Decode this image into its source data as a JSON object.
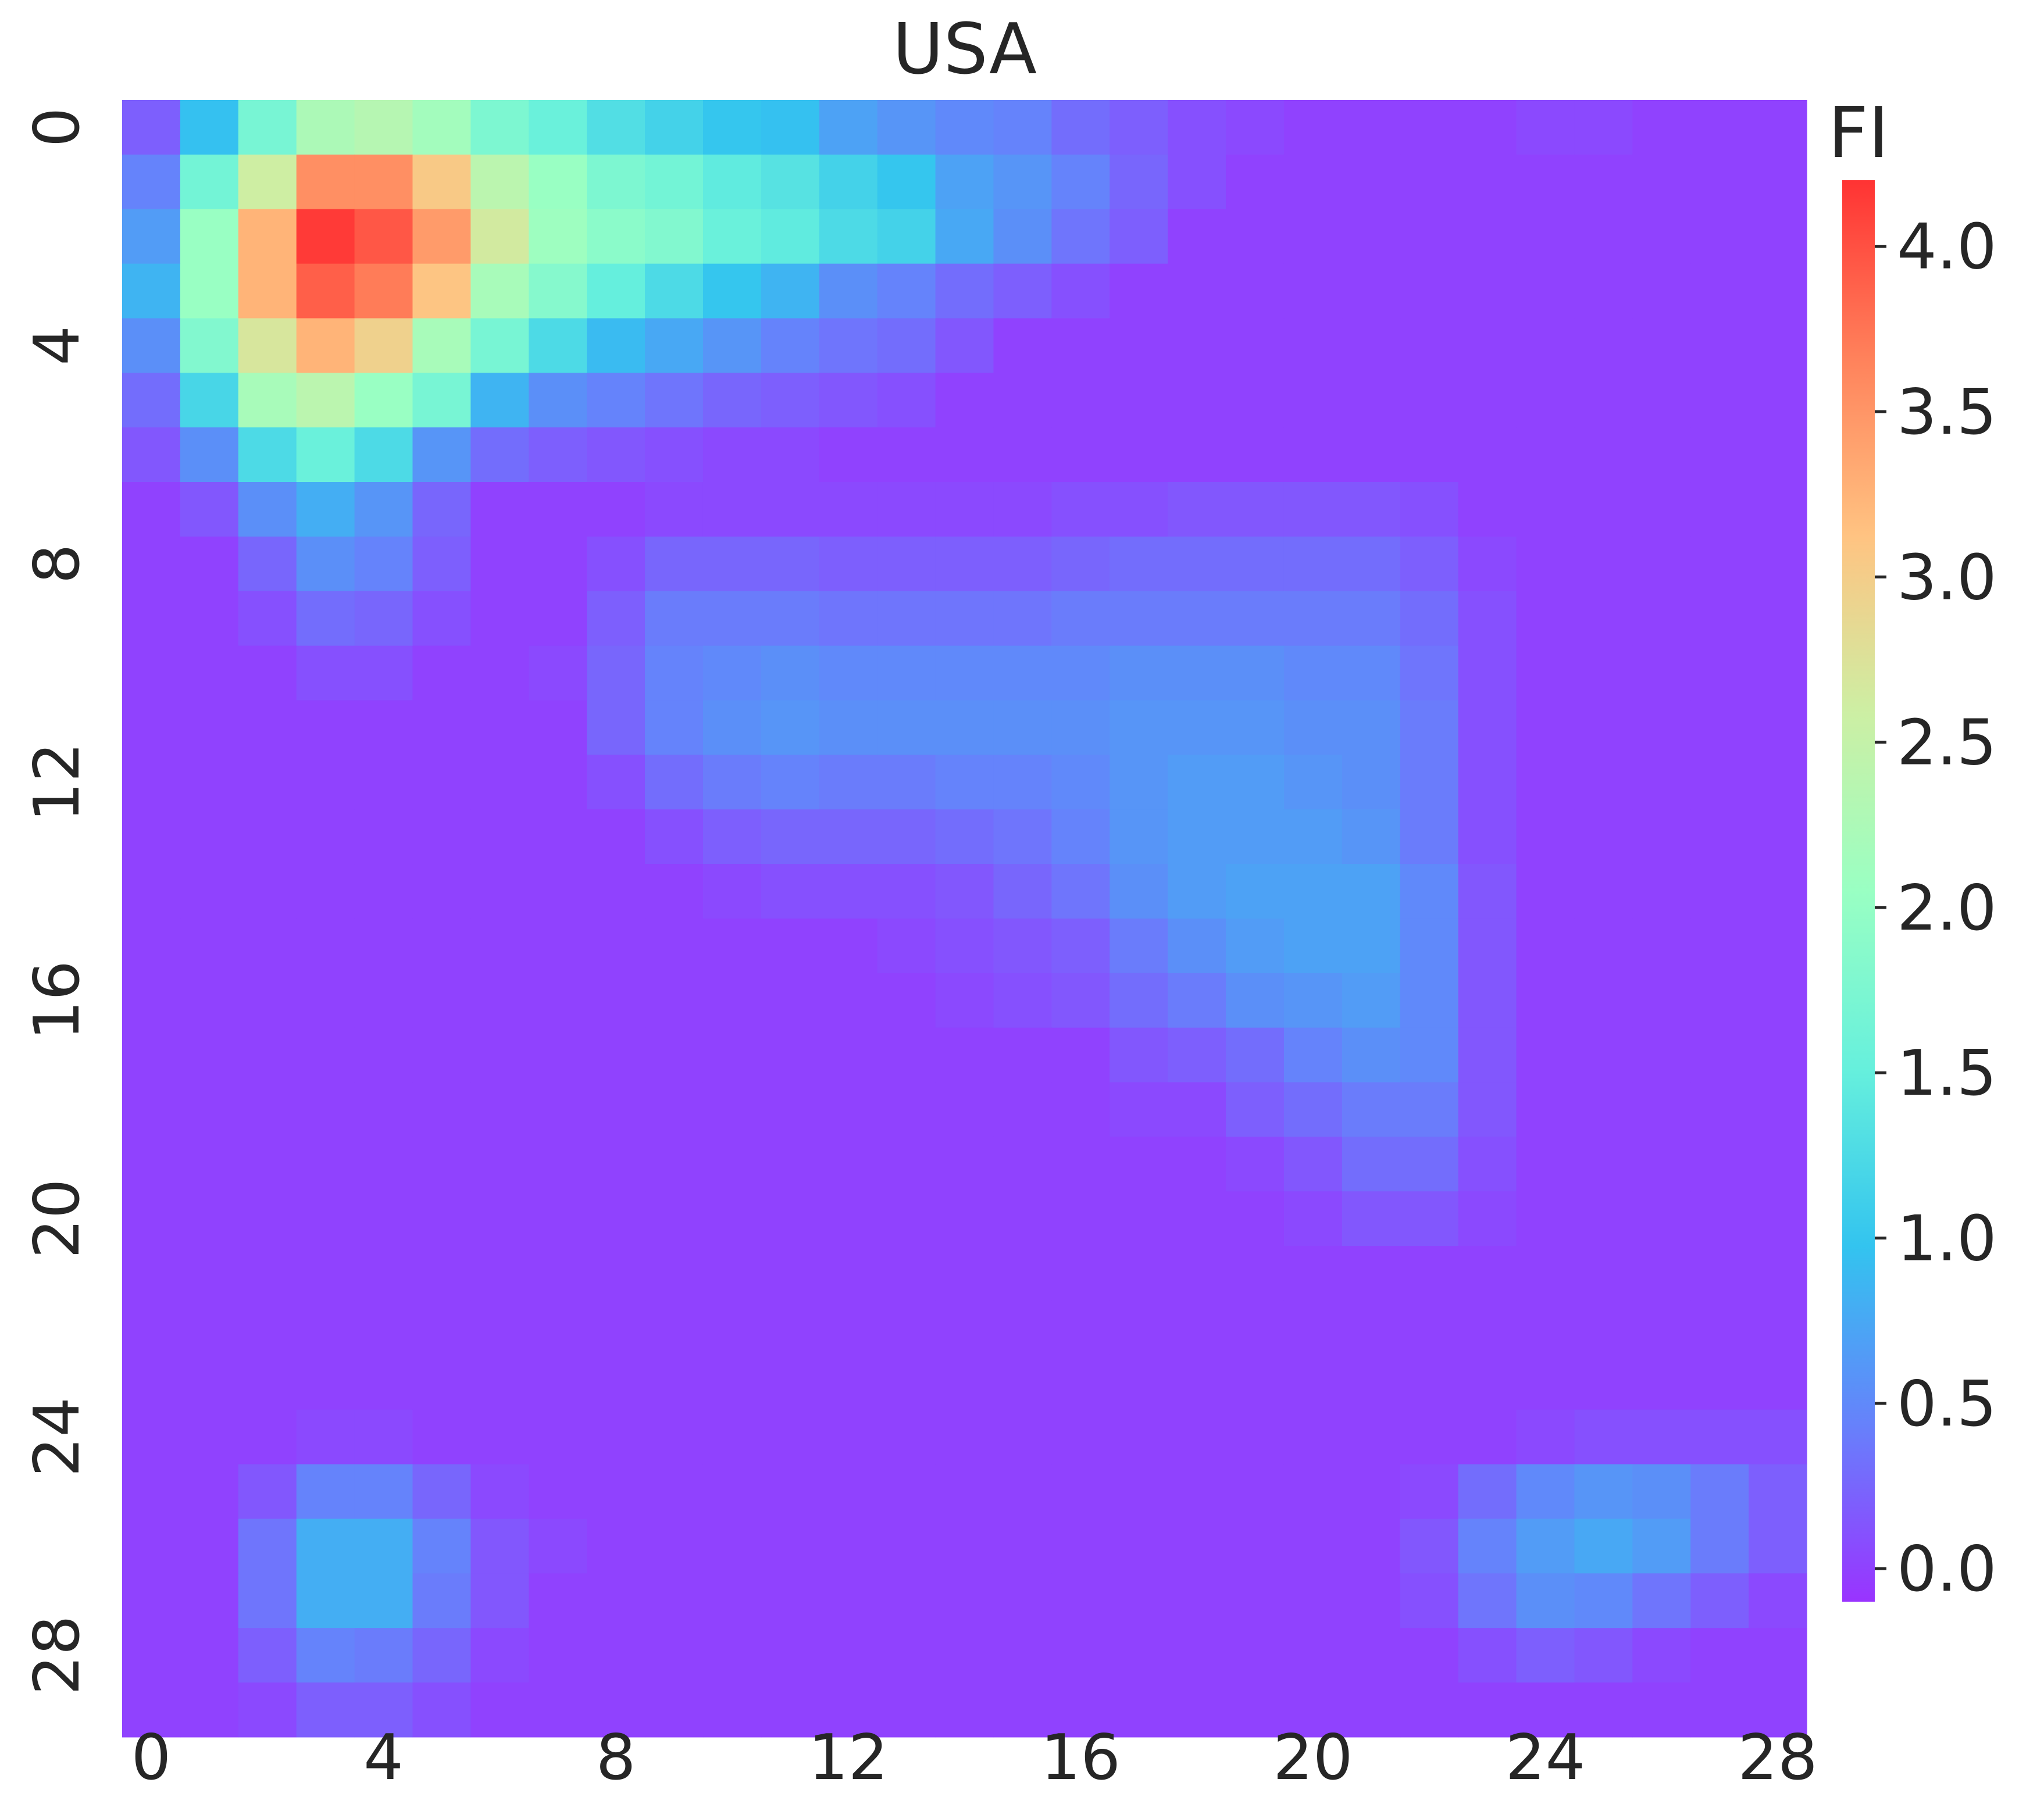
{
  "chart_data": {
    "type": "heatmap",
    "title": "USA",
    "xlabel": "",
    "ylabel": "",
    "rows": 29,
    "cols": 29,
    "x_tick_labels": [
      "0",
      "4",
      "8",
      "12",
      "16",
      "20",
      "24",
      "28"
    ],
    "y_tick_labels": [
      "0",
      "4",
      "8",
      "12",
      "16",
      "20",
      "24",
      "28"
    ],
    "colorbar": {
      "label": "FI",
      "min": -0.1,
      "max": 4.2,
      "ticks": [
        "0.0",
        "0.5",
        "1.0",
        "1.5",
        "2.0",
        "2.5",
        "3.0",
        "3.5",
        "4.0"
      ],
      "colormap": "rainbow",
      "colormap_stops": [
        "#8000ff",
        "#4062fa",
        "#00b5eb",
        "#40ecd4",
        "#80ffb4",
        "#c0eb8d",
        "#ffb462",
        "#ff6232",
        "#ff0000"
      ],
      "opacity": 0.8
    },
    "values": [
      [
        0.2,
        0.95,
        1.7,
        2.25,
        2.35,
        2.15,
        1.75,
        1.55,
        1.3,
        1.15,
        1.0,
        0.95,
        0.7,
        0.6,
        0.5,
        0.45,
        0.3,
        0.2,
        0.1,
        0.05,
        0.0,
        0.0,
        0.0,
        0.0,
        0.05,
        0.05,
        0.0,
        0.0,
        0.0
      ],
      [
        0.45,
        1.65,
        2.6,
        3.55,
        3.55,
        3.05,
        2.4,
        2.05,
        1.75,
        1.65,
        1.45,
        1.35,
        1.15,
        1.0,
        0.7,
        0.6,
        0.45,
        0.25,
        0.1,
        0.0,
        0.0,
        0.0,
        0.0,
        0.0,
        0.0,
        0.0,
        0.0,
        0.0,
        0.0
      ],
      [
        0.65,
        2.05,
        3.25,
        4.15,
        3.95,
        3.45,
        2.65,
        2.1,
        1.9,
        1.8,
        1.55,
        1.45,
        1.25,
        1.15,
        0.75,
        0.55,
        0.35,
        0.2,
        0.0,
        0.0,
        0.0,
        0.0,
        0.0,
        0.0,
        0.0,
        0.0,
        0.0,
        0.0,
        0.0
      ],
      [
        0.85,
        2.05,
        3.25,
        3.9,
        3.7,
        3.1,
        2.2,
        1.85,
        1.5,
        1.25,
        1.0,
        0.85,
        0.55,
        0.45,
        0.3,
        0.2,
        0.1,
        0.0,
        0.0,
        0.0,
        0.0,
        0.0,
        0.0,
        0.0,
        0.0,
        0.0,
        0.0,
        0.0,
        0.0
      ],
      [
        0.55,
        1.8,
        2.7,
        3.25,
        2.95,
        2.2,
        1.7,
        1.25,
        0.9,
        0.75,
        0.6,
        0.45,
        0.35,
        0.3,
        0.15,
        0.0,
        0.0,
        0.0,
        0.0,
        0.0,
        0.0,
        0.0,
        0.0,
        0.0,
        0.0,
        0.0,
        0.0,
        0.0,
        0.0
      ],
      [
        0.3,
        1.2,
        2.2,
        2.4,
        2.05,
        1.7,
        0.85,
        0.55,
        0.45,
        0.35,
        0.25,
        0.2,
        0.15,
        0.1,
        0.0,
        0.0,
        0.0,
        0.0,
        0.0,
        0.0,
        0.0,
        0.0,
        0.0,
        0.0,
        0.0,
        0.0,
        0.0,
        0.0,
        0.0
      ],
      [
        0.15,
        0.55,
        1.25,
        1.55,
        1.25,
        0.6,
        0.3,
        0.2,
        0.15,
        0.1,
        0.05,
        0.05,
        0.0,
        0.0,
        0.0,
        0.0,
        0.0,
        0.0,
        0.0,
        0.0,
        0.0,
        0.0,
        0.0,
        0.0,
        0.0,
        0.0,
        0.0,
        0.0,
        0.0
      ],
      [
        0.0,
        0.15,
        0.55,
        0.8,
        0.6,
        0.25,
        0.0,
        0.0,
        0.0,
        0.05,
        0.05,
        0.05,
        0.05,
        0.05,
        0.05,
        0.05,
        0.1,
        0.1,
        0.15,
        0.15,
        0.15,
        0.15,
        0.1,
        0.0,
        0.0,
        0.0,
        0.0,
        0.0,
        0.0
      ],
      [
        0.0,
        0.0,
        0.25,
        0.55,
        0.45,
        0.2,
        0.0,
        0.0,
        0.1,
        0.25,
        0.25,
        0.25,
        0.2,
        0.2,
        0.2,
        0.2,
        0.25,
        0.3,
        0.3,
        0.3,
        0.3,
        0.3,
        0.2,
        0.05,
        0.0,
        0.0,
        0.0,
        0.0,
        0.0
      ],
      [
        0.0,
        0.0,
        0.1,
        0.3,
        0.25,
        0.1,
        0.0,
        0.0,
        0.2,
        0.4,
        0.4,
        0.4,
        0.35,
        0.35,
        0.35,
        0.35,
        0.4,
        0.4,
        0.4,
        0.4,
        0.4,
        0.4,
        0.3,
        0.1,
        0.0,
        0.0,
        0.0,
        0.0,
        0.0
      ],
      [
        0.0,
        0.0,
        0.0,
        0.1,
        0.1,
        0.0,
        0.0,
        0.05,
        0.25,
        0.45,
        0.5,
        0.55,
        0.5,
        0.5,
        0.5,
        0.5,
        0.5,
        0.55,
        0.55,
        0.55,
        0.5,
        0.5,
        0.35,
        0.1,
        0.0,
        0.0,
        0.0,
        0.0,
        0.0
      ],
      [
        0.0,
        0.0,
        0.0,
        0.0,
        0.0,
        0.0,
        0.0,
        0.0,
        0.25,
        0.45,
        0.55,
        0.6,
        0.55,
        0.55,
        0.55,
        0.55,
        0.55,
        0.6,
        0.6,
        0.6,
        0.55,
        0.55,
        0.4,
        0.1,
        0.0,
        0.0,
        0.0,
        0.0,
        0.0
      ],
      [
        0.0,
        0.0,
        0.0,
        0.0,
        0.0,
        0.0,
        0.0,
        0.0,
        0.1,
        0.3,
        0.4,
        0.45,
        0.4,
        0.4,
        0.45,
        0.45,
        0.5,
        0.6,
        0.65,
        0.65,
        0.6,
        0.55,
        0.4,
        0.1,
        0.0,
        0.0,
        0.0,
        0.0,
        0.0
      ],
      [
        0.0,
        0.0,
        0.0,
        0.0,
        0.0,
        0.0,
        0.0,
        0.0,
        0.0,
        0.1,
        0.2,
        0.25,
        0.25,
        0.25,
        0.3,
        0.35,
        0.45,
        0.6,
        0.65,
        0.65,
        0.65,
        0.6,
        0.4,
        0.1,
        0.0,
        0.0,
        0.0,
        0.0,
        0.0
      ],
      [
        0.0,
        0.0,
        0.0,
        0.0,
        0.0,
        0.0,
        0.0,
        0.0,
        0.0,
        0.0,
        0.05,
        0.1,
        0.1,
        0.1,
        0.15,
        0.25,
        0.35,
        0.55,
        0.65,
        0.7,
        0.7,
        0.7,
        0.5,
        0.15,
        0.0,
        0.0,
        0.0,
        0.0,
        0.0
      ],
      [
        0.0,
        0.0,
        0.0,
        0.0,
        0.0,
        0.0,
        0.0,
        0.0,
        0.0,
        0.0,
        0.0,
        0.0,
        0.0,
        0.05,
        0.1,
        0.15,
        0.2,
        0.4,
        0.55,
        0.65,
        0.7,
        0.7,
        0.5,
        0.15,
        0.0,
        0.0,
        0.0,
        0.0,
        0.0
      ],
      [
        0.0,
        0.0,
        0.0,
        0.0,
        0.0,
        0.0,
        0.0,
        0.0,
        0.0,
        0.0,
        0.0,
        0.0,
        0.0,
        0.0,
        0.05,
        0.1,
        0.15,
        0.3,
        0.4,
        0.55,
        0.6,
        0.65,
        0.5,
        0.15,
        0.0,
        0.0,
        0.0,
        0.0,
        0.0
      ],
      [
        0.0,
        0.0,
        0.0,
        0.0,
        0.0,
        0.0,
        0.0,
        0.0,
        0.0,
        0.0,
        0.0,
        0.0,
        0.0,
        0.0,
        0.0,
        0.0,
        0.0,
        0.15,
        0.2,
        0.3,
        0.45,
        0.55,
        0.5,
        0.15,
        0.0,
        0.0,
        0.0,
        0.0,
        0.0
      ],
      [
        0.0,
        0.0,
        0.0,
        0.0,
        0.0,
        0.0,
        0.0,
        0.0,
        0.0,
        0.0,
        0.0,
        0.0,
        0.0,
        0.0,
        0.0,
        0.0,
        0.0,
        0.05,
        0.05,
        0.2,
        0.3,
        0.4,
        0.4,
        0.15,
        0.0,
        0.0,
        0.0,
        0.0,
        0.0
      ],
      [
        0.0,
        0.0,
        0.0,
        0.0,
        0.0,
        0.0,
        0.0,
        0.0,
        0.0,
        0.0,
        0.0,
        0.0,
        0.0,
        0.0,
        0.0,
        0.0,
        0.0,
        0.0,
        0.0,
        0.05,
        0.15,
        0.3,
        0.3,
        0.1,
        0.0,
        0.0,
        0.0,
        0.0,
        0.0
      ],
      [
        0.0,
        0.0,
        0.0,
        0.0,
        0.0,
        0.0,
        0.0,
        0.0,
        0.0,
        0.0,
        0.0,
        0.0,
        0.0,
        0.0,
        0.0,
        0.0,
        0.0,
        0.0,
        0.0,
        0.0,
        0.05,
        0.15,
        0.15,
        0.05,
        0.0,
        0.0,
        0.0,
        0.0,
        0.0
      ],
      [
        0.0,
        0.0,
        0.0,
        0.0,
        0.0,
        0.0,
        0.0,
        0.0,
        0.0,
        0.0,
        0.0,
        0.0,
        0.0,
        0.0,
        0.0,
        0.0,
        0.0,
        0.0,
        0.0,
        0.0,
        0.0,
        0.0,
        0.0,
        0.0,
        0.0,
        0.0,
        0.0,
        0.0,
        0.0
      ],
      [
        0.0,
        0.0,
        0.0,
        0.0,
        0.0,
        0.0,
        0.0,
        0.0,
        0.0,
        0.0,
        0.0,
        0.0,
        0.0,
        0.0,
        0.0,
        0.0,
        0.0,
        0.0,
        0.0,
        0.0,
        0.0,
        0.0,
        0.0,
        0.0,
        0.0,
        0.0,
        0.0,
        0.0,
        0.0
      ],
      [
        0.0,
        0.0,
        0.0,
        0.0,
        0.0,
        0.0,
        0.0,
        0.0,
        0.0,
        0.0,
        0.0,
        0.0,
        0.0,
        0.0,
        0.0,
        0.0,
        0.0,
        0.0,
        0.0,
        0.0,
        0.0,
        0.0,
        0.0,
        0.0,
        0.0,
        0.0,
        0.0,
        0.0,
        0.0
      ],
      [
        0.0,
        0.0,
        0.0,
        0.05,
        0.05,
        0.0,
        0.0,
        0.0,
        0.0,
        0.0,
        0.0,
        0.0,
        0.0,
        0.0,
        0.0,
        0.0,
        0.0,
        0.0,
        0.0,
        0.0,
        0.0,
        0.0,
        0.0,
        0.0,
        0.05,
        0.1,
        0.1,
        0.1,
        0.1
      ],
      [
        0.0,
        0.0,
        0.15,
        0.45,
        0.45,
        0.25,
        0.05,
        0.0,
        0.0,
        0.0,
        0.0,
        0.0,
        0.0,
        0.0,
        0.0,
        0.0,
        0.0,
        0.0,
        0.0,
        0.0,
        0.0,
        0.0,
        0.05,
        0.3,
        0.5,
        0.6,
        0.55,
        0.4,
        0.2
      ],
      [
        0.0,
        0.0,
        0.35,
        0.8,
        0.8,
        0.45,
        0.15,
        0.05,
        0.0,
        0.0,
        0.0,
        0.0,
        0.0,
        0.0,
        0.0,
        0.0,
        0.0,
        0.0,
        0.0,
        0.0,
        0.0,
        0.0,
        0.15,
        0.45,
        0.65,
        0.75,
        0.65,
        0.4,
        0.2
      ],
      [
        0.0,
        0.0,
        0.35,
        0.8,
        0.8,
        0.4,
        0.15,
        0.0,
        0.0,
        0.0,
        0.0,
        0.0,
        0.0,
        0.0,
        0.0,
        0.0,
        0.0,
        0.0,
        0.0,
        0.0,
        0.0,
        0.0,
        0.1,
        0.35,
        0.55,
        0.5,
        0.35,
        0.2,
        0.05
      ],
      [
        0.0,
        0.0,
        0.2,
        0.45,
        0.4,
        0.25,
        0.05,
        0.0,
        0.0,
        0.0,
        0.0,
        0.0,
        0.0,
        0.0,
        0.0,
        0.0,
        0.0,
        0.0,
        0.0,
        0.0,
        0.0,
        0.0,
        0.0,
        0.1,
        0.2,
        0.15,
        0.05,
        0.0,
        0.0
      ],
      [
        0.0,
        0.0,
        0.05,
        0.2,
        0.2,
        0.1,
        0.0,
        0.0,
        0.0,
        0.0,
        0.0,
        0.0,
        0.0,
        0.0,
        0.0,
        0.0,
        0.0,
        0.0,
        0.0,
        0.0,
        0.0,
        0.0,
        0.0,
        0.0,
        0.0,
        0.0,
        0.0,
        0.0,
        0.0
      ]
    ]
  }
}
